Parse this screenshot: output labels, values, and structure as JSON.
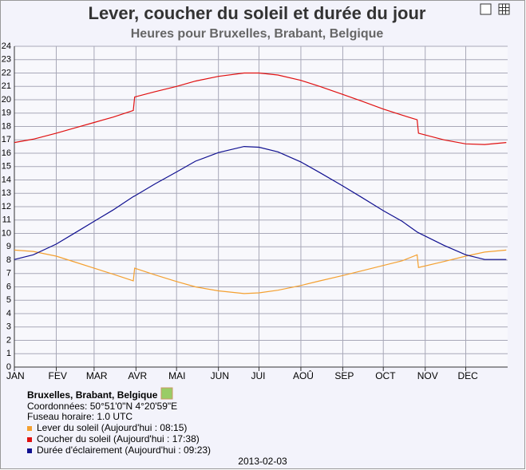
{
  "chart_data": {
    "type": "line",
    "title": "Lever, coucher du soleil et durée du jour",
    "subtitle": "Heures pour Bruxelles, Brabant, Belgique",
    "x": [
      0,
      14,
      31,
      45,
      59,
      73,
      88,
      89,
      104,
      120,
      134,
      151,
      170,
      181,
      195,
      212,
      226,
      243,
      257,
      273,
      287,
      298,
      299,
      318,
      334,
      348,
      364
    ],
    "xlim": [
      0,
      365
    ],
    "xticks": [
      {
        "value": 0,
        "label": "JAN"
      },
      {
        "value": 31,
        "label": "FEV"
      },
      {
        "value": 59,
        "label": "MAR"
      },
      {
        "value": 90,
        "label": "AVR"
      },
      {
        "value": 120,
        "label": "MAI"
      },
      {
        "value": 151,
        "label": "JUN"
      },
      {
        "value": 181,
        "label": "JUI"
      },
      {
        "value": 212,
        "label": "AOÛ"
      },
      {
        "value": 243,
        "label": "SEP"
      },
      {
        "value": 273,
        "label": "OCT"
      },
      {
        "value": 304,
        "label": "NOV"
      },
      {
        "value": 334,
        "label": "DEC"
      }
    ],
    "ylim": [
      0,
      24
    ],
    "yticks": [
      0,
      1,
      2,
      3,
      4,
      5,
      6,
      7,
      8,
      9,
      10,
      11,
      12,
      13,
      14,
      15,
      16,
      17,
      18,
      19,
      20,
      21,
      22,
      23,
      24
    ],
    "grid": true,
    "series": [
      {
        "name": "Lever du soleil (Aujourd'hui : 08:15)",
        "color": "#f4a030",
        "values": [
          8.75,
          8.65,
          8.3,
          7.85,
          7.4,
          6.95,
          6.45,
          7.4,
          6.9,
          6.4,
          6.0,
          5.7,
          5.5,
          5.55,
          5.75,
          6.1,
          6.45,
          6.85,
          7.2,
          7.6,
          7.95,
          8.4,
          7.45,
          7.9,
          8.3,
          8.6,
          8.75
        ]
      },
      {
        "name": "Coucher du soleil (Aujourd'hui : 17:38)",
        "color": "#e01010",
        "values": [
          16.8,
          17.05,
          17.5,
          17.9,
          18.3,
          18.7,
          19.2,
          20.2,
          20.6,
          21.0,
          21.4,
          21.75,
          22.0,
          22.0,
          21.85,
          21.45,
          21.0,
          20.4,
          19.9,
          19.3,
          18.85,
          18.5,
          17.5,
          17.0,
          16.7,
          16.65,
          16.8
        ]
      },
      {
        "name": "Durée d'éclairement (Aujourd'hui : 09:23)",
        "color": "#101090",
        "values": [
          8.05,
          8.4,
          9.2,
          10.05,
          10.9,
          11.75,
          12.75,
          12.8,
          13.7,
          14.6,
          15.4,
          16.05,
          16.5,
          16.45,
          16.1,
          15.35,
          14.55,
          13.55,
          12.7,
          11.7,
          10.9,
          10.1,
          10.05,
          9.1,
          8.4,
          8.05,
          8.05
        ]
      }
    ],
    "location": "Bruxelles, Brabant, Belgique",
    "coordinates": "Coordonnées: 50°51'0\"N 4°20'59\"E",
    "timezone": "Fuseau horaire: 1.0 UTC",
    "date": "2013-02-03"
  }
}
